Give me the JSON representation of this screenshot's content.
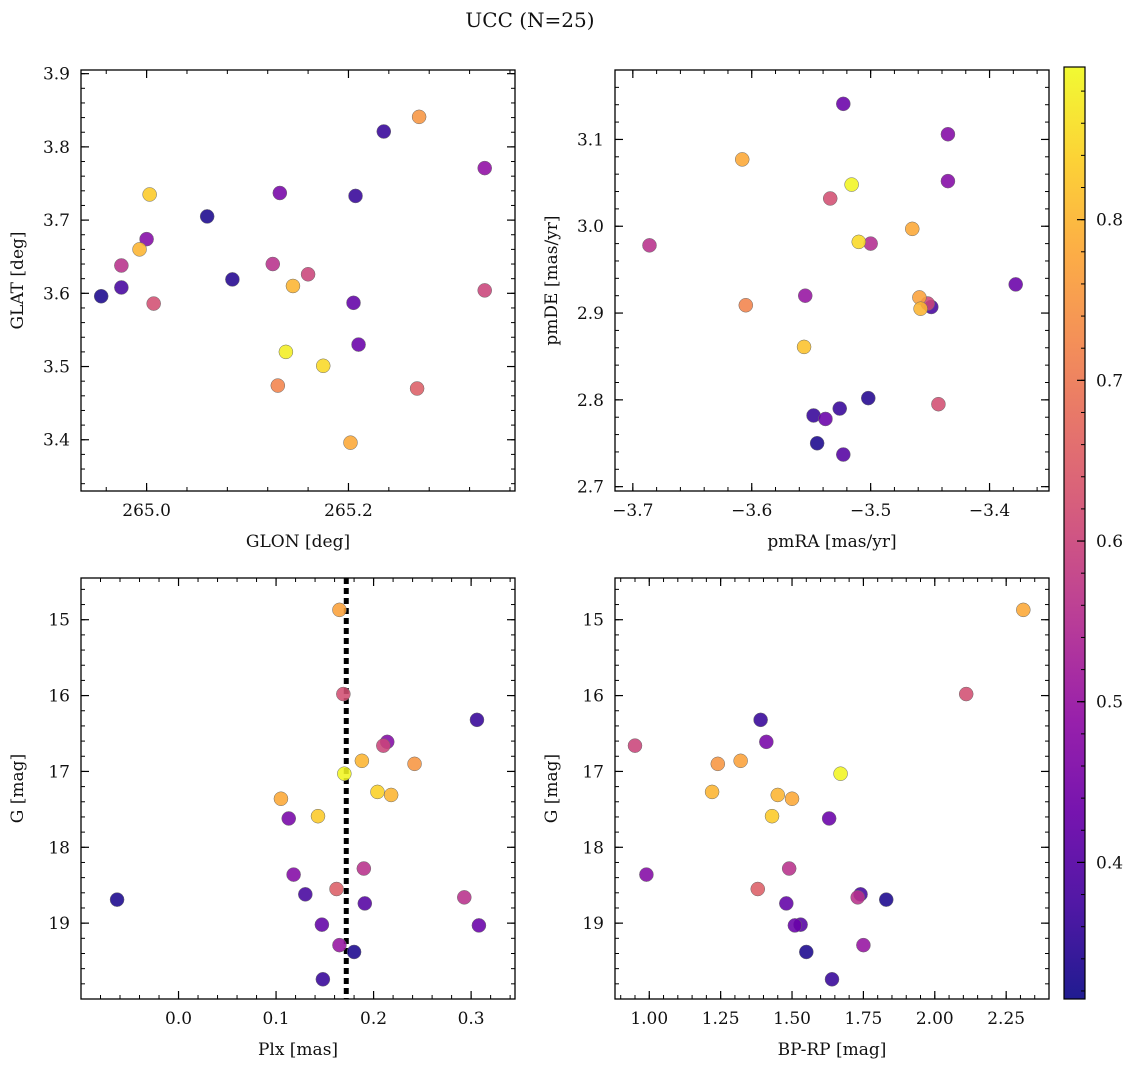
{
  "title": "UCC (N=25)",
  "colorbar": {
    "cmap": "plasma",
    "range": [
      0.315,
      0.895
    ],
    "ticks": [
      0.4,
      0.5,
      0.6,
      0.7,
      0.8
    ],
    "tick_labels": [
      "0.4",
      "0.5",
      "0.6",
      "0.7",
      "0.8"
    ]
  },
  "chart_data": [
    {
      "type": "scatter",
      "title": "",
      "xlabel": "GLON [deg]",
      "ylabel": "GLAT [deg]",
      "xlim": [
        264.935,
        265.365
      ],
      "ylim": [
        3.33,
        3.905
      ],
      "xticks": [
        265.0,
        265.2
      ],
      "xtick_labels": [
        "265.0",
        "265.2"
      ],
      "yticks": [
        3.4,
        3.5,
        3.6,
        3.7,
        3.8,
        3.9
      ],
      "ytick_labels": [
        "3.4",
        "3.5",
        "3.6",
        "3.7",
        "3.8",
        "3.9"
      ],
      "points": [
        {
          "x": 264.955,
          "y": 3.596,
          "c": 0.33
        },
        {
          "x": 264.975,
          "y": 3.608,
          "c": 0.38
        },
        {
          "x": 264.975,
          "y": 3.638,
          "c": 0.56
        },
        {
          "x": 264.993,
          "y": 3.66,
          "c": 0.8
        },
        {
          "x": 265.0,
          "y": 3.674,
          "c": 0.47
        },
        {
          "x": 265.003,
          "y": 3.735,
          "c": 0.83
        },
        {
          "x": 265.007,
          "y": 3.586,
          "c": 0.62
        },
        {
          "x": 265.06,
          "y": 3.705,
          "c": 0.33
        },
        {
          "x": 265.085,
          "y": 3.619,
          "c": 0.34
        },
        {
          "x": 265.125,
          "y": 3.64,
          "c": 0.56
        },
        {
          "x": 265.13,
          "y": 3.474,
          "c": 0.72
        },
        {
          "x": 265.132,
          "y": 3.737,
          "c": 0.45
        },
        {
          "x": 265.138,
          "y": 3.52,
          "c": 0.88
        },
        {
          "x": 265.145,
          "y": 3.61,
          "c": 0.8
        },
        {
          "x": 265.16,
          "y": 3.626,
          "c": 0.6
        },
        {
          "x": 265.175,
          "y": 3.501,
          "c": 0.85
        },
        {
          "x": 265.202,
          "y": 3.396,
          "c": 0.78
        },
        {
          "x": 265.205,
          "y": 3.587,
          "c": 0.42
        },
        {
          "x": 265.207,
          "y": 3.733,
          "c": 0.36
        },
        {
          "x": 265.21,
          "y": 3.53,
          "c": 0.43
        },
        {
          "x": 265.235,
          "y": 3.821,
          "c": 0.36
        },
        {
          "x": 265.268,
          "y": 3.47,
          "c": 0.65
        },
        {
          "x": 265.27,
          "y": 3.841,
          "c": 0.75
        },
        {
          "x": 265.335,
          "y": 3.771,
          "c": 0.49
        },
        {
          "x": 265.335,
          "y": 3.604,
          "c": 0.6
        }
      ]
    },
    {
      "type": "scatter",
      "title": "",
      "xlabel": "pmRA [mas/yr]",
      "ylabel": "pmDE [mas/yr]",
      "xlim": [
        -3.715,
        -3.35
      ],
      "ylim": [
        2.695,
        3.18
      ],
      "xticks": [
        -3.7,
        -3.6,
        -3.5,
        -3.4
      ],
      "xtick_labels": [
        "−3.7",
        "−3.6",
        "−3.5",
        "−3.4"
      ],
      "yticks": [
        2.7,
        2.8,
        2.9,
        3.0,
        3.1
      ],
      "ytick_labels": [
        "2.7",
        "2.8",
        "2.9",
        "3.0",
        "3.1"
      ],
      "points": [
        {
          "x": -3.686,
          "y": 2.978,
          "c": 0.56
        },
        {
          "x": -3.608,
          "y": 3.077,
          "c": 0.78
        },
        {
          "x": -3.605,
          "y": 2.909,
          "c": 0.72
        },
        {
          "x": -3.556,
          "y": 2.861,
          "c": 0.82
        },
        {
          "x": -3.555,
          "y": 2.92,
          "c": 0.5
        },
        {
          "x": -3.548,
          "y": 2.782,
          "c": 0.36
        },
        {
          "x": -3.545,
          "y": 2.75,
          "c": 0.33
        },
        {
          "x": -3.538,
          "y": 2.778,
          "c": 0.43
        },
        {
          "x": -3.534,
          "y": 3.032,
          "c": 0.62
        },
        {
          "x": -3.526,
          "y": 2.79,
          "c": 0.36
        },
        {
          "x": -3.523,
          "y": 2.737,
          "c": 0.4
        },
        {
          "x": -3.523,
          "y": 3.141,
          "c": 0.43
        },
        {
          "x": -3.516,
          "y": 3.048,
          "c": 0.89
        },
        {
          "x": -3.51,
          "y": 2.982,
          "c": 0.85
        },
        {
          "x": -3.502,
          "y": 2.802,
          "c": 0.34
        },
        {
          "x": -3.5,
          "y": 2.98,
          "c": 0.55
        },
        {
          "x": -3.465,
          "y": 2.997,
          "c": 0.78
        },
        {
          "x": -3.459,
          "y": 2.918,
          "c": 0.77
        },
        {
          "x": -3.458,
          "y": 2.905,
          "c": 0.8
        },
        {
          "x": -3.452,
          "y": 2.911,
          "c": 0.6
        },
        {
          "x": -3.449,
          "y": 2.907,
          "c": 0.38
        },
        {
          "x": -3.443,
          "y": 2.795,
          "c": 0.62
        },
        {
          "x": -3.435,
          "y": 3.106,
          "c": 0.47
        },
        {
          "x": -3.435,
          "y": 3.052,
          "c": 0.47
        },
        {
          "x": -3.378,
          "y": 2.933,
          "c": 0.43
        }
      ]
    },
    {
      "type": "scatter",
      "title": "",
      "xlabel": "Plx [mas]",
      "ylabel": "G [mag]",
      "xlim": [
        -0.1,
        0.345
      ],
      "ylim": [
        14.45,
        20.0
      ],
      "y_inverted": true,
      "xticks": [
        0.0,
        0.1,
        0.2,
        0.3
      ],
      "xtick_labels": [
        "0.0",
        "0.1",
        "0.2",
        "0.3"
      ],
      "yticks": [
        15,
        16,
        17,
        18,
        19
      ],
      "ytick_labels": [
        "15",
        "16",
        "17",
        "18",
        "19"
      ],
      "vline": {
        "x": 0.172,
        "style": "dotted",
        "color": "#000000"
      },
      "points": [
        {
          "x": -0.063,
          "y": 18.69,
          "c": 0.33
        },
        {
          "x": 0.105,
          "y": 17.36,
          "c": 0.78
        },
        {
          "x": 0.113,
          "y": 17.62,
          "c": 0.45
        },
        {
          "x": 0.118,
          "y": 18.36,
          "c": 0.47
        },
        {
          "x": 0.13,
          "y": 18.62,
          "c": 0.38
        },
        {
          "x": 0.143,
          "y": 17.59,
          "c": 0.83
        },
        {
          "x": 0.147,
          "y": 19.02,
          "c": 0.42
        },
        {
          "x": 0.148,
          "y": 19.74,
          "c": 0.36
        },
        {
          "x": 0.162,
          "y": 18.55,
          "c": 0.65
        },
        {
          "x": 0.165,
          "y": 19.29,
          "c": 0.5
        },
        {
          "x": 0.165,
          "y": 14.87,
          "c": 0.77
        },
        {
          "x": 0.169,
          "y": 15.98,
          "c": 0.62
        },
        {
          "x": 0.17,
          "y": 17.03,
          "c": 0.89
        },
        {
          "x": 0.18,
          "y": 19.38,
          "c": 0.33
        },
        {
          "x": 0.188,
          "y": 16.86,
          "c": 0.8
        },
        {
          "x": 0.19,
          "y": 18.28,
          "c": 0.56
        },
        {
          "x": 0.191,
          "y": 18.74,
          "c": 0.4
        },
        {
          "x": 0.204,
          "y": 17.27,
          "c": 0.84
        },
        {
          "x": 0.21,
          "y": 16.66,
          "c": 0.6
        },
        {
          "x": 0.214,
          "y": 16.61,
          "c": 0.47
        },
        {
          "x": 0.218,
          "y": 17.31,
          "c": 0.8
        },
        {
          "x": 0.242,
          "y": 16.9,
          "c": 0.75
        },
        {
          "x": 0.293,
          "y": 18.66,
          "c": 0.56
        },
        {
          "x": 0.306,
          "y": 16.32,
          "c": 0.36
        },
        {
          "x": 0.308,
          "y": 19.03,
          "c": 0.43
        }
      ]
    },
    {
      "type": "scatter",
      "title": "",
      "xlabel": "BP-RP [mag]",
      "ylabel": "G [mag]",
      "xlim": [
        0.88,
        2.4
      ],
      "ylim": [
        14.45,
        20.0
      ],
      "y_inverted": true,
      "xticks": [
        1.0,
        1.25,
        1.5,
        1.75,
        2.0,
        2.25
      ],
      "xtick_labels": [
        "1.00",
        "1.25",
        "1.50",
        "1.75",
        "2.00",
        "2.25"
      ],
      "yticks": [
        15,
        16,
        17,
        18,
        19
      ],
      "ytick_labels": [
        "15",
        "16",
        "17",
        "18",
        "19"
      ],
      "points": [
        {
          "x": 0.95,
          "y": 16.66,
          "c": 0.6
        },
        {
          "x": 0.99,
          "y": 18.36,
          "c": 0.47
        },
        {
          "x": 1.22,
          "y": 17.27,
          "c": 0.8
        },
        {
          "x": 1.24,
          "y": 16.9,
          "c": 0.75
        },
        {
          "x": 1.32,
          "y": 16.86,
          "c": 0.77
        },
        {
          "x": 1.38,
          "y": 18.55,
          "c": 0.65
        },
        {
          "x": 1.39,
          "y": 16.32,
          "c": 0.36
        },
        {
          "x": 1.41,
          "y": 16.61,
          "c": 0.45
        },
        {
          "x": 1.43,
          "y": 17.59,
          "c": 0.83
        },
        {
          "x": 1.45,
          "y": 17.31,
          "c": 0.8
        },
        {
          "x": 1.48,
          "y": 18.74,
          "c": 0.42
        },
        {
          "x": 1.49,
          "y": 18.28,
          "c": 0.56
        },
        {
          "x": 1.5,
          "y": 17.36,
          "c": 0.78
        },
        {
          "x": 1.51,
          "y": 19.03,
          "c": 0.43
        },
        {
          "x": 1.53,
          "y": 19.02,
          "c": 0.4
        },
        {
          "x": 1.55,
          "y": 19.38,
          "c": 0.33
        },
        {
          "x": 1.63,
          "y": 17.62,
          "c": 0.43
        },
        {
          "x": 1.64,
          "y": 19.74,
          "c": 0.36
        },
        {
          "x": 1.67,
          "y": 17.03,
          "c": 0.89
        },
        {
          "x": 1.73,
          "y": 18.66,
          "c": 0.56
        },
        {
          "x": 1.74,
          "y": 18.62,
          "c": 0.38
        },
        {
          "x": 1.75,
          "y": 19.29,
          "c": 0.5
        },
        {
          "x": 1.83,
          "y": 18.69,
          "c": 0.33
        },
        {
          "x": 2.11,
          "y": 15.98,
          "c": 0.62
        },
        {
          "x": 2.31,
          "y": 14.87,
          "c": 0.78
        }
      ]
    }
  ]
}
